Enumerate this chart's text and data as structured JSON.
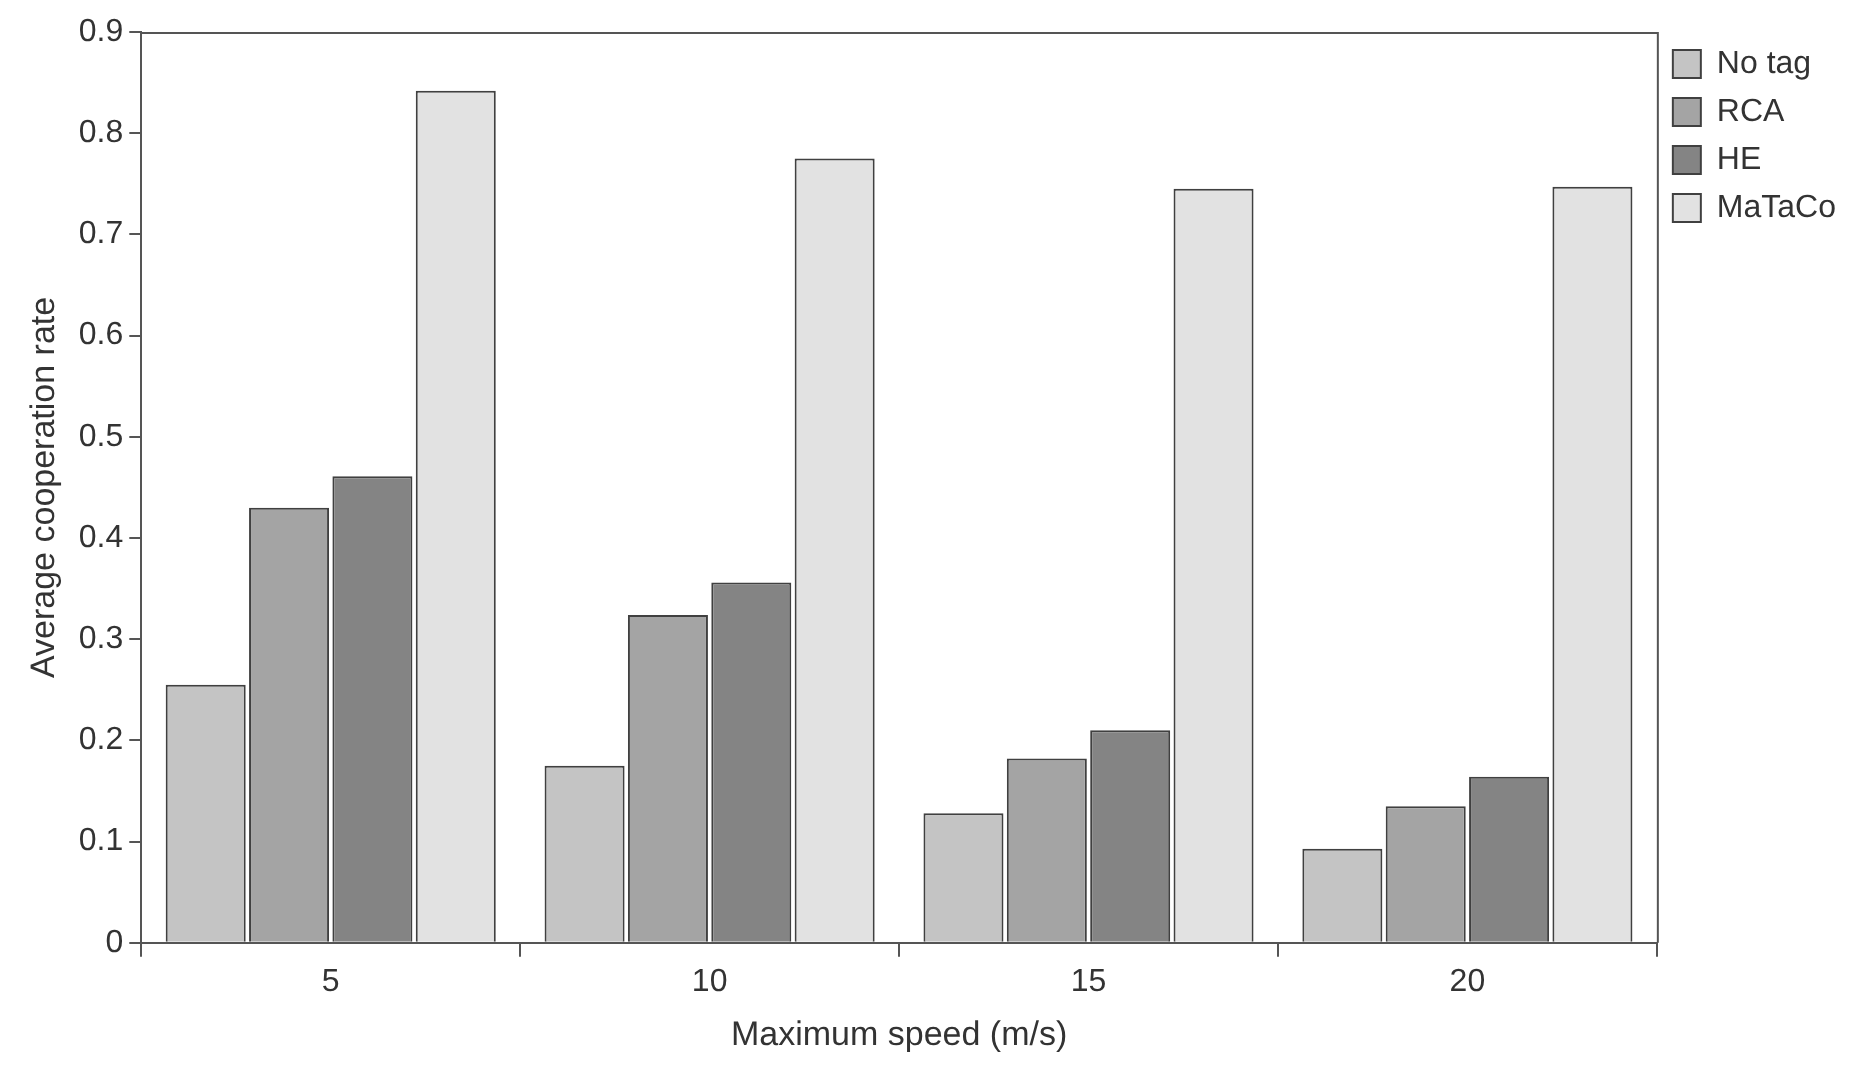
{
  "chart_data": {
    "type": "bar",
    "xlabel": "Maximum speed (m/s)",
    "ylabel": "Average cooperation rate",
    "categories": [
      "5",
      "10",
      "15",
      "20"
    ],
    "series": [
      {
        "name": "No tag",
        "color": "#c4c4c4",
        "values": [
          0.255,
          0.175,
          0.128,
          0.093
        ]
      },
      {
        "name": "RCA",
        "color": "#a4a4a4",
        "values": [
          0.43,
          0.324,
          0.182,
          0.135
        ]
      },
      {
        "name": "HE",
        "color": "#848484",
        "values": [
          0.461,
          0.356,
          0.21,
          0.164
        ]
      },
      {
        "name": "MaTaCo",
        "color": "#e2e2e2",
        "values": [
          0.842,
          0.775,
          0.745,
          0.747
        ]
      }
    ],
    "ylim": [
      0,
      0.9
    ],
    "yticks": [
      0,
      0.1,
      0.2,
      0.3,
      0.4,
      0.5,
      0.6,
      0.7,
      0.8,
      0.9
    ],
    "grid": false,
    "legend": "top right"
  }
}
